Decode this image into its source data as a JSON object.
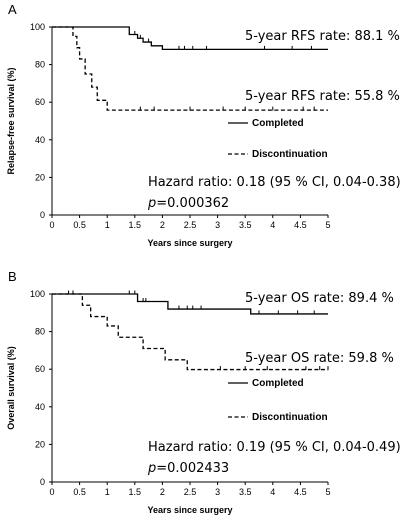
{
  "chart_data": [
    {
      "panel_label": "A",
      "type": "line",
      "step": true,
      "xlabel": "Years since surgery",
      "ylabel": "Relapse-free survival (%)",
      "xlim": [
        0,
        5
      ],
      "ylim": [
        0,
        100
      ],
      "x_ticks": [
        "0",
        "0.5",
        "1",
        "1.5",
        "2",
        "2.5",
        "3",
        "3.5",
        "4",
        "4.5",
        "5"
      ],
      "y_ticks": [
        "0",
        "20",
        "40",
        "60",
        "80",
        "100"
      ],
      "grid": false,
      "legend_position": "right, below curves",
      "series": [
        {
          "name": "Completed",
          "line_style": "solid",
          "x": [
            0,
            1.3,
            1.4,
            1.55,
            1.65,
            1.8,
            2.0,
            5.0
          ],
          "y": [
            100,
            100,
            96,
            94,
            92,
            90,
            88.1,
            88.1
          ],
          "censor_x": [
            1.5,
            1.6,
            1.75,
            2.3,
            2.4,
            2.55,
            2.8,
            3.85,
            4.35,
            4.7
          ],
          "rate_label": "5-year RFS rate: 88.1 %"
        },
        {
          "name": "Discontinuation",
          "line_style": "dashed",
          "x": [
            0,
            0.3,
            0.38,
            0.45,
            0.5,
            0.6,
            0.72,
            0.82,
            1.0,
            5.0
          ],
          "y": [
            100,
            100,
            95,
            89,
            83,
            75,
            68,
            61,
            55.8,
            55.8
          ],
          "censor_x": [
            1.6,
            1.85,
            2.5,
            3.1,
            3.5,
            4.0,
            4.55,
            4.75
          ],
          "rate_label": "5-year RFS rate: 55.8 %"
        }
      ],
      "hazard_text": "Hazard ratio: 0.18 (95 % CI, 0.04-0.38)",
      "p_prefix": "p",
      "p_value": "=0.000362"
    },
    {
      "panel_label": "B",
      "type": "line",
      "step": true,
      "xlabel": "Years since surgery",
      "ylabel": "Overall survival (%)",
      "xlim": [
        0,
        5
      ],
      "ylim": [
        0,
        100
      ],
      "x_ticks": [
        "0",
        "0.5",
        "1",
        "1.5",
        "2",
        "2.5",
        "3",
        "3.5",
        "4",
        "4.5",
        "5"
      ],
      "y_ticks": [
        "0",
        "20",
        "40",
        "60",
        "80",
        "100"
      ],
      "grid": false,
      "legend_position": "right, below curves",
      "series": [
        {
          "name": "Completed",
          "line_style": "solid",
          "x": [
            0,
            1.3,
            1.55,
            2.1,
            3.6,
            5.0
          ],
          "y": [
            100,
            100,
            96,
            92,
            89.4,
            89.4
          ],
          "censor_x": [
            1.4,
            1.5,
            1.65,
            1.7,
            2.3,
            2.45,
            2.55,
            2.7,
            3.75,
            4.1,
            4.45,
            4.75
          ],
          "rate_label": "5-year OS rate: 89.4 %"
        },
        {
          "name": "Discontinuation",
          "line_style": "dashed",
          "x": [
            0,
            0.4,
            0.55,
            0.7,
            1.0,
            1.2,
            1.65,
            2.05,
            2.45,
            5.0
          ],
          "y": [
            100,
            100,
            94,
            88,
            83,
            77,
            71,
            65,
            59.8,
            59.8
          ],
          "censor_x": [
            0.3,
            0.38,
            3.05,
            3.5,
            3.9,
            4.6,
            4.85,
            5.0
          ],
          "rate_label": "5-year OS rate: 59.8 %"
        }
      ],
      "hazard_text": "Hazard ratio: 0.19 (95 % CI, 0.04-0.49)",
      "p_prefix": "p",
      "p_value": "=0.002433"
    }
  ]
}
